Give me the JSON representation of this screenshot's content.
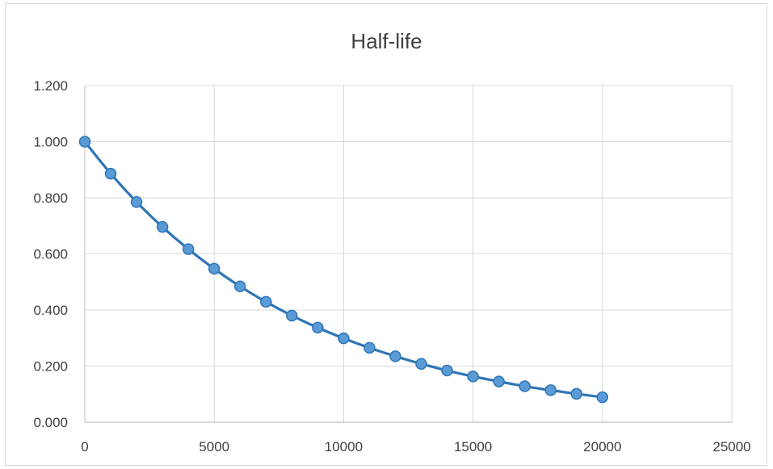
{
  "chart_data": {
    "type": "scatter",
    "title": "Half-life",
    "xlabel": "",
    "ylabel": "",
    "xlim": [
      0,
      25000
    ],
    "ylim": [
      0,
      1.2
    ],
    "x_ticks": [
      "0",
      "5000",
      "10000",
      "15000",
      "20000",
      "25000"
    ],
    "y_ticks": [
      "0.000",
      "0.200",
      "0.400",
      "0.600",
      "0.800",
      "1.000",
      "1.200"
    ],
    "grid": true,
    "legend": "none",
    "series": [
      {
        "color": "#2e75b6",
        "marker_color": "#5b9bd5",
        "x": [
          0,
          1000,
          2000,
          3000,
          4000,
          5000,
          6000,
          7000,
          8000,
          9000,
          10000,
          11000,
          12000,
          13000,
          14000,
          15000,
          16000,
          17000,
          18000,
          19000,
          20000
        ],
        "y": [
          1.0,
          0.886,
          0.785,
          0.696,
          0.617,
          0.547,
          0.484,
          0.429,
          0.38,
          0.337,
          0.299,
          0.265,
          0.235,
          0.208,
          0.184,
          0.163,
          0.145,
          0.128,
          0.114,
          0.101,
          0.089
        ]
      }
    ]
  }
}
